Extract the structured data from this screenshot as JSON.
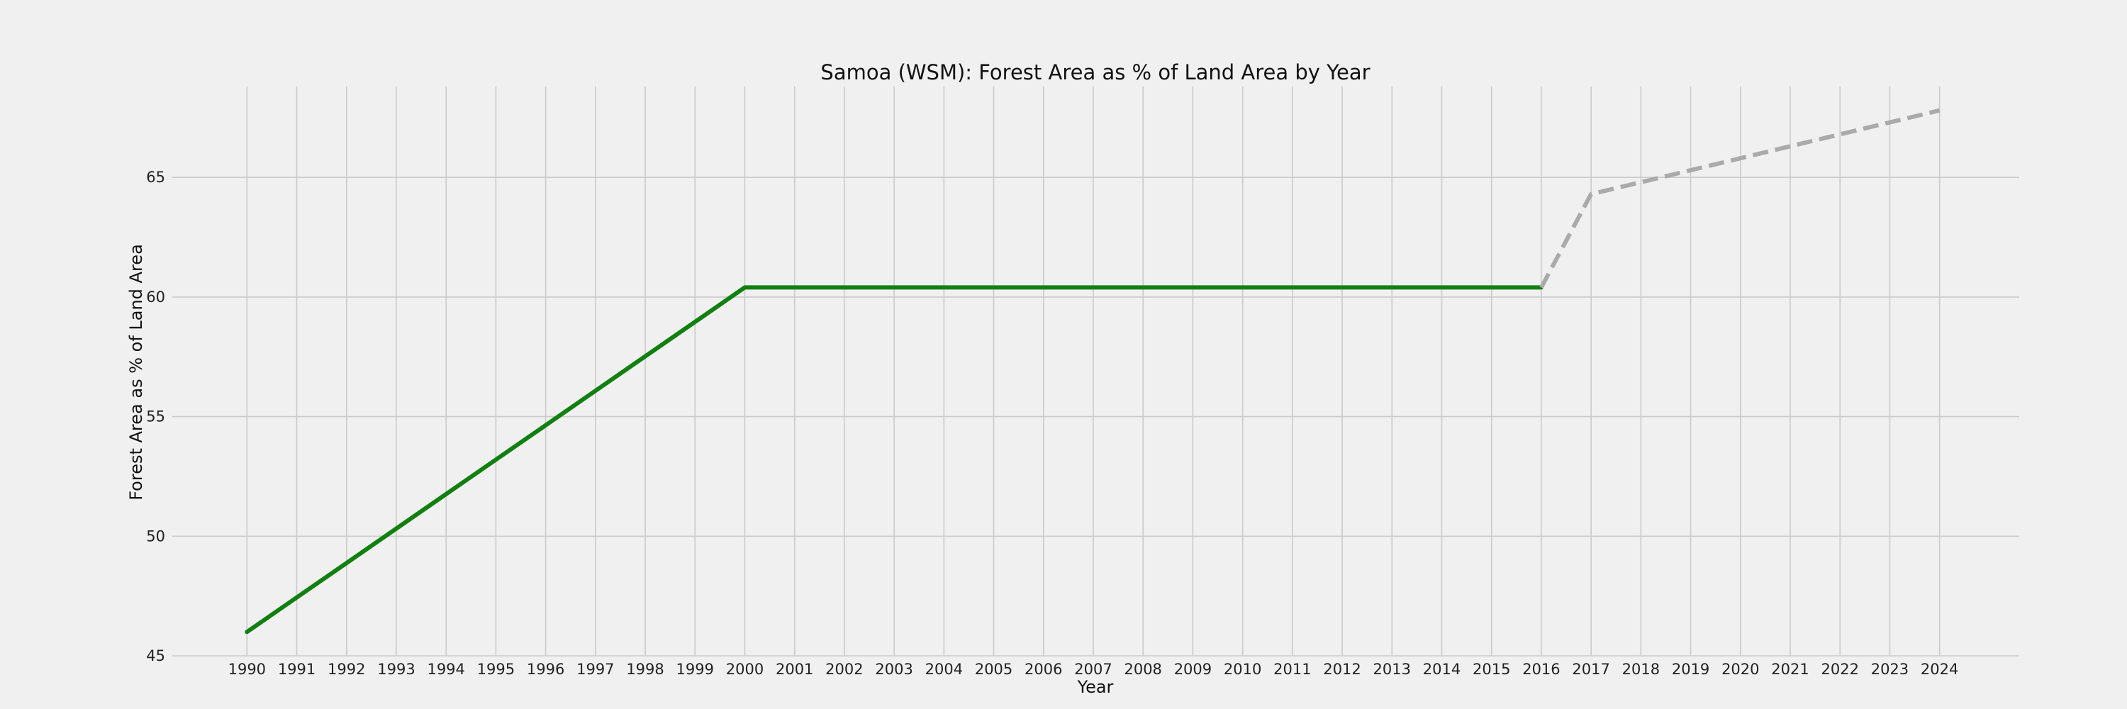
{
  "chart_data": {
    "type": "line",
    "title": "Samoa (WSM): Forest Area as % of Land Area by Year",
    "xlabel": "Year",
    "ylabel": "Forest Area as % of Land Area",
    "grid": true,
    "xlim": [
      1988.5,
      2025.6
    ],
    "ylim": [
      45,
      68.8
    ],
    "x_ticks": [
      1990,
      1991,
      1992,
      1993,
      1994,
      1995,
      1996,
      1997,
      1998,
      1999,
      2000,
      2001,
      2002,
      2003,
      2004,
      2005,
      2006,
      2007,
      2008,
      2009,
      2010,
      2011,
      2012,
      2013,
      2014,
      2015,
      2016,
      2017,
      2018,
      2019,
      2020,
      2021,
      2022,
      2023,
      2024
    ],
    "y_ticks": [
      45,
      50,
      55,
      60,
      65
    ],
    "series": [
      {
        "style": "solid",
        "color": "#118011",
        "x": [
          1990,
          1991,
          1992,
          1993,
          1994,
          1995,
          1996,
          1997,
          1998,
          1999,
          2000,
          2001,
          2002,
          2003,
          2004,
          2005,
          2006,
          2007,
          2008,
          2009,
          2010,
          2011,
          2012,
          2013,
          2014,
          2015,
          2016
        ],
        "values": [
          46.0,
          47.44,
          48.88,
          50.32,
          51.76,
          53.2,
          54.64,
          56.08,
          57.52,
          58.96,
          60.4,
          60.4,
          60.4,
          60.4,
          60.4,
          60.4,
          60.4,
          60.4,
          60.4,
          60.4,
          60.4,
          60.4,
          60.4,
          60.4,
          60.4,
          60.4,
          60.4
        ]
      },
      {
        "style": "dashed",
        "color": "#aaaaaa",
        "x": [
          2016,
          2017,
          2018,
          2019,
          2020,
          2021,
          2022,
          2023,
          2024
        ],
        "values": [
          60.4,
          64.3,
          64.8,
          65.3,
          65.8,
          66.3,
          66.8,
          67.3,
          67.8
        ]
      }
    ]
  }
}
